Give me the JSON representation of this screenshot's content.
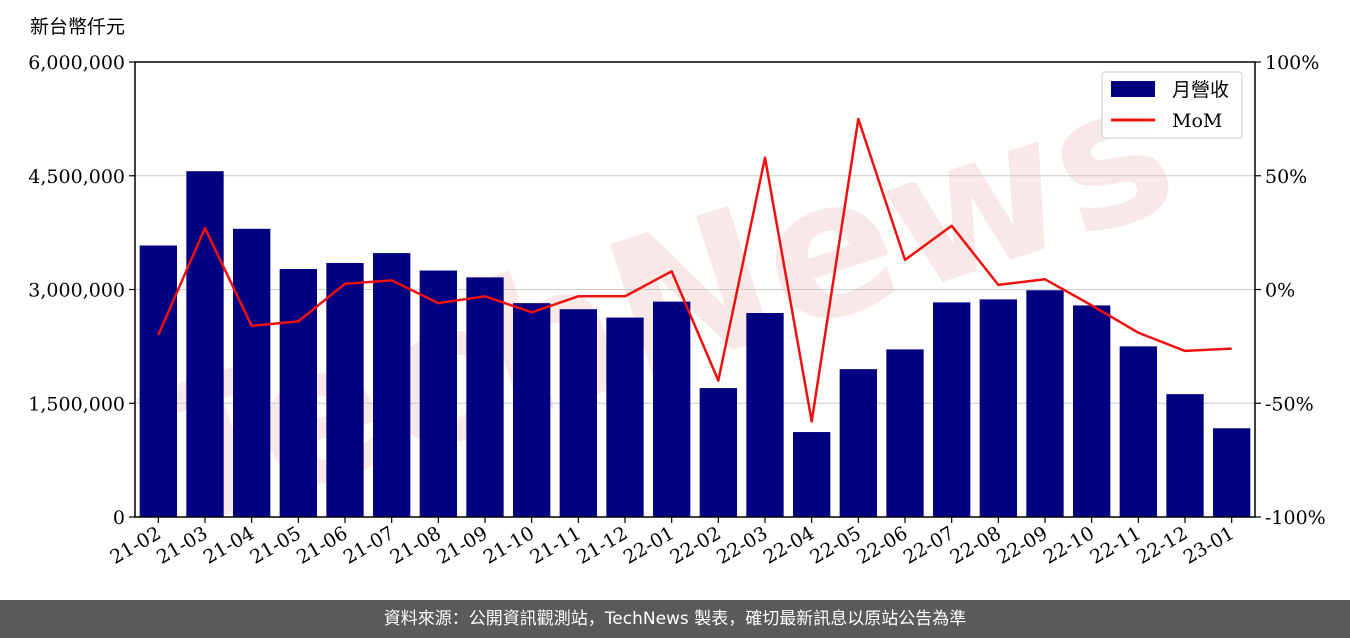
{
  "chart_data": {
    "type": "bar",
    "title": "",
    "ylabel": "新台幣仟元",
    "xlabel": "",
    "categories": [
      "21-02",
      "21-03",
      "21-04",
      "21-05",
      "21-06",
      "21-07",
      "21-08",
      "21-09",
      "21-10",
      "21-11",
      "21-12",
      "22-01",
      "22-02",
      "22-03",
      "22-04",
      "22-05",
      "22-06",
      "22-07",
      "22-08",
      "22-09",
      "22-10",
      "22-11",
      "22-12",
      "23-01"
    ],
    "series": [
      {
        "name": "月營收",
        "type": "bar",
        "axis": "left",
        "color": "#000080",
        "values": [
          3580000,
          4560000,
          3800000,
          3270000,
          3350000,
          3480000,
          3250000,
          3160000,
          2820000,
          2740000,
          2630000,
          2840000,
          1700000,
          2690000,
          1120000,
          1950000,
          2210000,
          2830000,
          2870000,
          2990000,
          2790000,
          2250000,
          1620000,
          1170000
        ]
      },
      {
        "name": "MoM",
        "type": "line",
        "axis": "right",
        "color": "#ee1111",
        "values": [
          -20,
          27,
          -16,
          -14,
          2.5,
          4,
          -6,
          -3,
          -10,
          -3,
          -3,
          8,
          -40,
          58,
          -58,
          75,
          13,
          28,
          2,
          4.5,
          -7,
          -19,
          -27,
          -26
        ]
      }
    ],
    "y_left": {
      "ylim": [
        0,
        6000000
      ],
      "ticks": [
        0,
        1500000,
        3000000,
        4500000,
        6000000
      ],
      "tick_labels": [
        "0",
        "1,500,000",
        "3,000,000",
        "4,500,000",
        "6,000,000"
      ]
    },
    "y_right": {
      "ylim": [
        -100,
        100
      ],
      "ticks": [
        -100,
        -50,
        0,
        50,
        100
      ],
      "tick_labels": [
        "-100%",
        "-50%",
        "0%",
        "50%",
        "100%"
      ]
    },
    "grid": "horizontal",
    "legend_position": "top-right",
    "watermark": "TechNews"
  },
  "footer": {
    "text": "資料來源：公開資訊觀測站，TechNews 製表，確切最新訊息以原站公告為準"
  }
}
